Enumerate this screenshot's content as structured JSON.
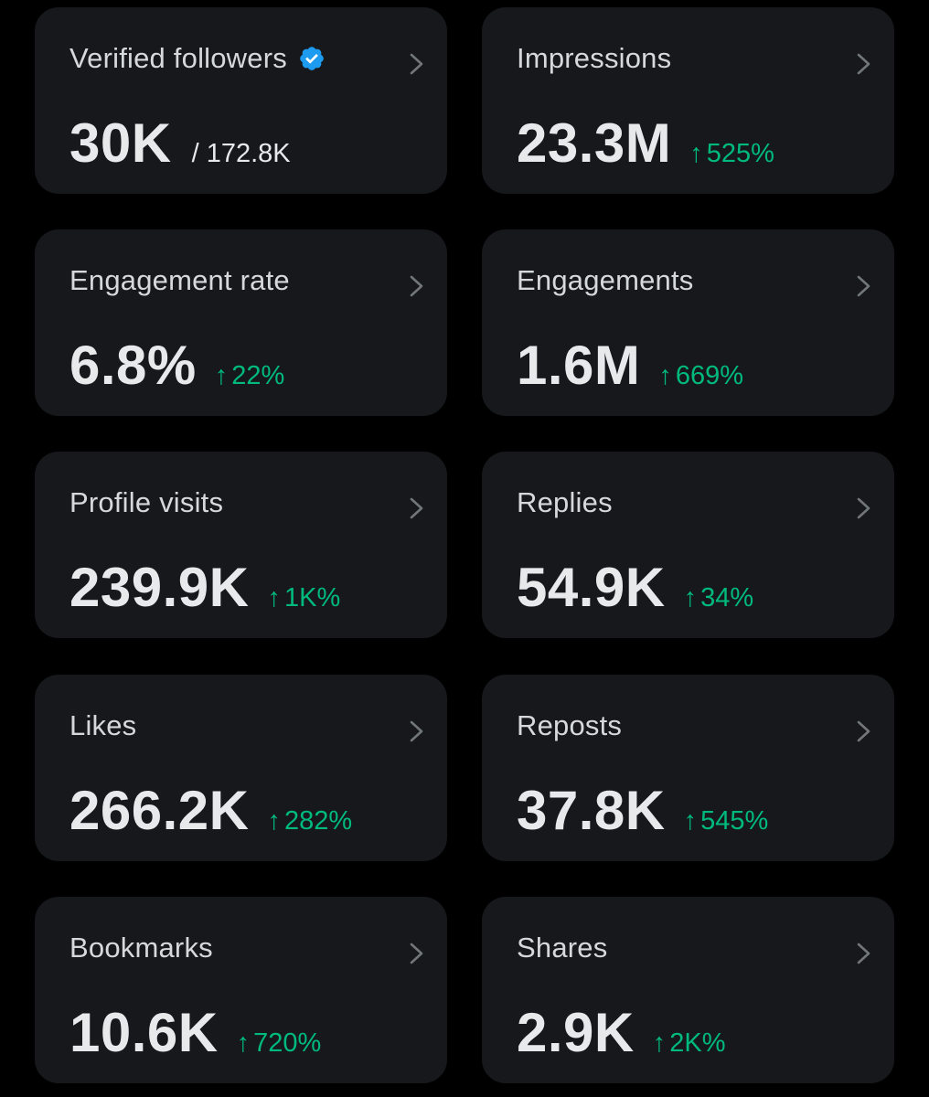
{
  "colors": {
    "background": "#000000",
    "card": "#16181c",
    "positive": "#00ba7c",
    "verified": "#1d9bf0"
  },
  "cards": [
    {
      "label": "Verified followers",
      "value": "30K",
      "total": "/ 172.8K",
      "icon": "verified-badge-icon"
    },
    {
      "label": "Impressions",
      "value": "23.3M",
      "change": "525%",
      "direction": "up"
    },
    {
      "label": "Engagement rate",
      "value": "6.8%",
      "change": "22%",
      "direction": "up"
    },
    {
      "label": "Engagements",
      "value": "1.6M",
      "change": "669%",
      "direction": "up"
    },
    {
      "label": "Profile visits",
      "value": "239.9K",
      "change": "1K%",
      "direction": "up"
    },
    {
      "label": "Replies",
      "value": "54.9K",
      "change": "34%",
      "direction": "up"
    },
    {
      "label": "Likes",
      "value": "266.2K",
      "change": "282%",
      "direction": "up"
    },
    {
      "label": "Reposts",
      "value": "37.8K",
      "change": "545%",
      "direction": "up"
    },
    {
      "label": "Bookmarks",
      "value": "10.6K",
      "change": "720%",
      "direction": "up"
    },
    {
      "label": "Shares",
      "value": "2.9K",
      "change": "2K%",
      "direction": "up"
    }
  ]
}
